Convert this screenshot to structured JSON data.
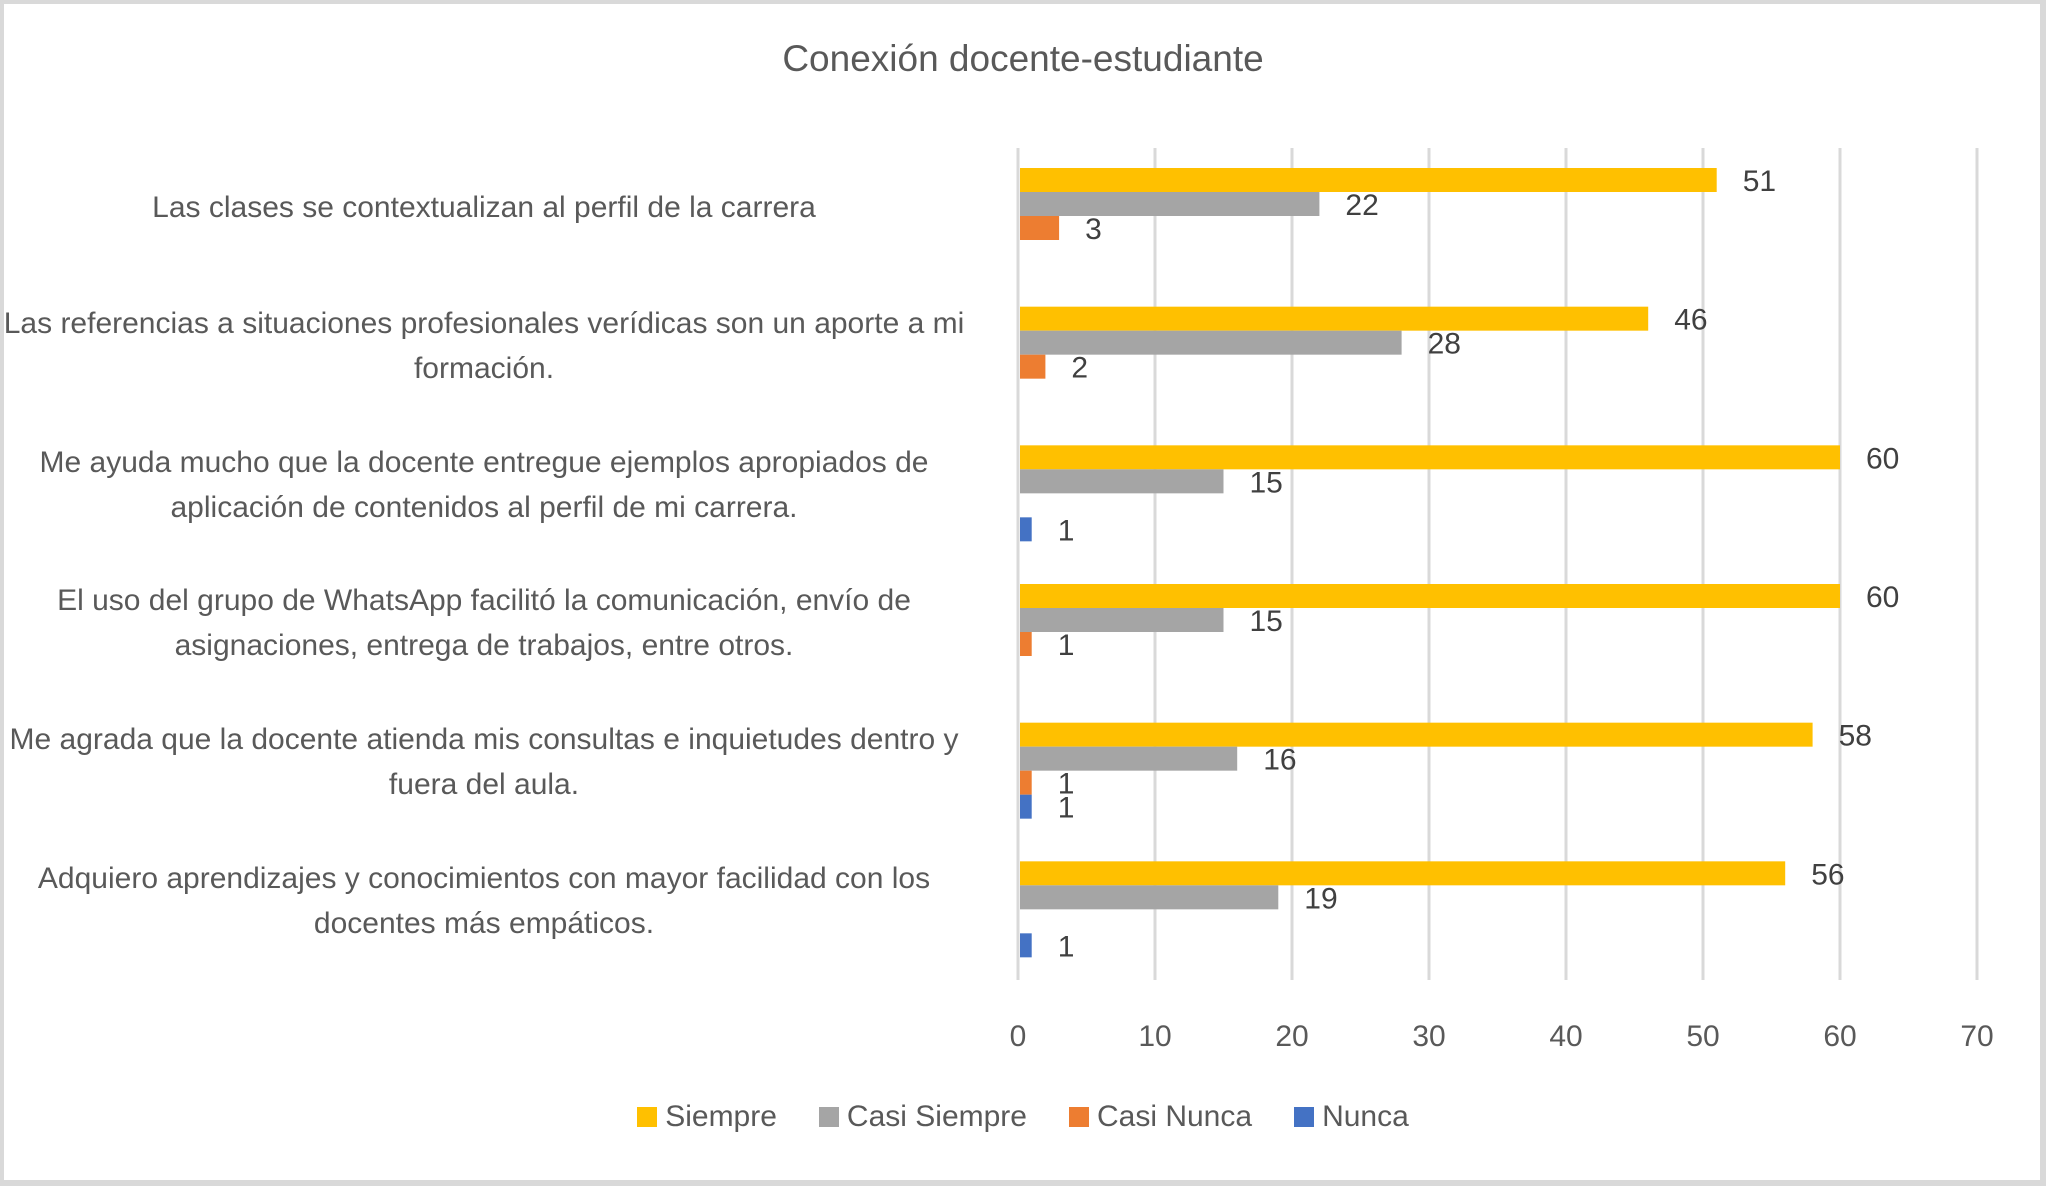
{
  "chart_data": {
    "type": "bar",
    "orientation": "horizontal",
    "title": "Conexión docente-estudiante",
    "xlabel": "",
    "ylabel": "",
    "xlim": [
      0,
      70
    ],
    "x_ticks": [
      "0",
      "10",
      "20",
      "30",
      "40",
      "50",
      "60",
      "70"
    ],
    "x_tick_values": [
      0,
      10,
      20,
      30,
      40,
      50,
      60,
      70
    ],
    "grid": true,
    "legend_position": "bottom",
    "categories": [
      "Las clases se contextualizan al perfil de la carrera",
      "Las referencias a situaciones profesionales verídicas son un aporte a mi formación.",
      "Me ayuda mucho que la docente entregue ejemplos apropiados de aplicación de contenidos al perfil de mi carrera.",
      "El uso del grupo de WhatsApp facilitó la comunicación, envío de asignaciones, entrega de trabajos, entre otros.",
      "Me agrada que la docente atienda mis consultas e inquietudes dentro y fuera del aula.",
      "Adquiero aprendizajes y conocimientos con mayor facilidad con los docentes más empáticos."
    ],
    "series": [
      {
        "name": "Siempre",
        "color": "#ffc000",
        "values": [
          51,
          46,
          60,
          60,
          58,
          56
        ]
      },
      {
        "name": "Casi Siempre",
        "color": "#a5a5a5",
        "values": [
          22,
          28,
          15,
          15,
          16,
          19
        ]
      },
      {
        "name": "Casi Nunca",
        "color": "#ed7d31",
        "values": [
          3,
          2,
          null,
          1,
          1,
          null
        ]
      },
      {
        "name": "Nunca",
        "color": "#4472c4",
        "values": [
          null,
          null,
          1,
          null,
          1,
          1
        ]
      }
    ]
  }
}
